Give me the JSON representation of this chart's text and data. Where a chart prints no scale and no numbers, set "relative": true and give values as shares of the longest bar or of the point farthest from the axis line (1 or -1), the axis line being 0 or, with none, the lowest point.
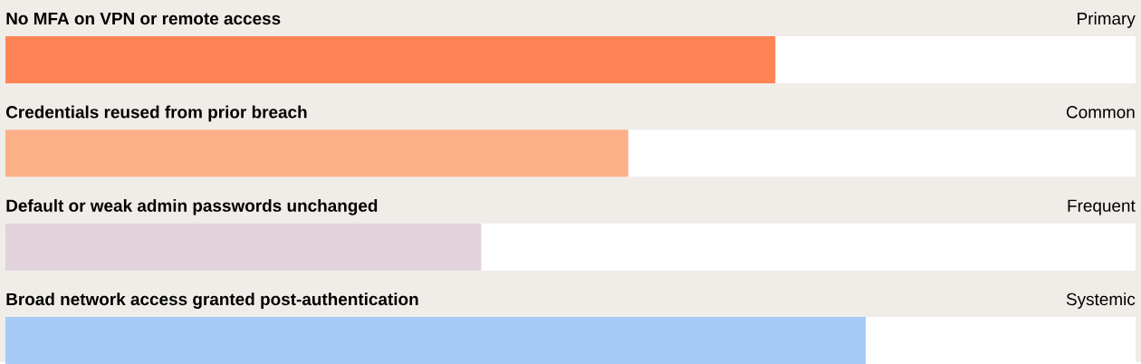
{
  "chart_data": {
    "type": "bar",
    "orientation": "horizontal",
    "relative": true,
    "categories": [
      "No MFA on VPN or remote access",
      "Credentials reused from prior breach",
      "Default or weak admin passwords unchanged",
      "Broad network access granted post-authentication"
    ],
    "values": [
      0.895,
      0.724,
      0.553,
      1
    ],
    "colors": [
      "#ff8455",
      "#fdb088",
      "#e2d2dc",
      "#a6cbf6"
    ],
    "annotations": [
      "Primary",
      "Common",
      "Frequent",
      "Systemic"
    ]
  }
}
